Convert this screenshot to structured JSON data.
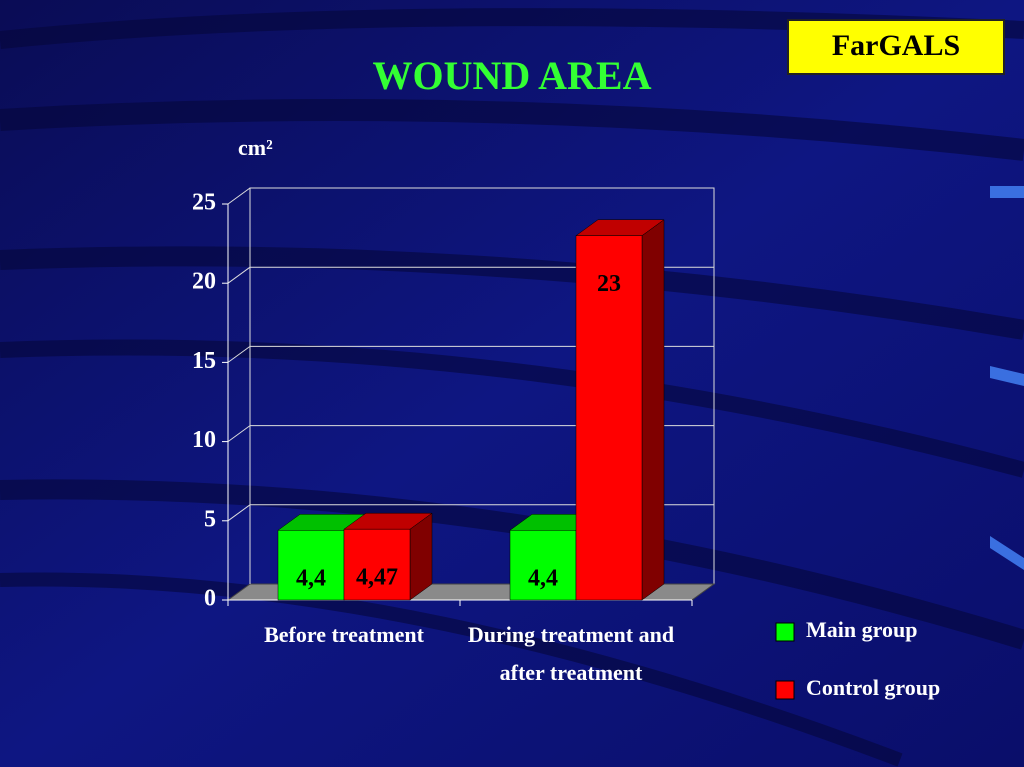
{
  "chart_data": {
    "type": "bar3d",
    "title": "WOUND AREA",
    "badge": "FarGALS",
    "y_label": "cm²",
    "categories": [
      "Before treatment",
      "During treatment and after treatment"
    ],
    "series": [
      {
        "name": "Main group",
        "color": "#00ff00",
        "values": [
          4.4,
          4.4
        ],
        "value_labels": [
          "4,4",
          "4,4"
        ]
      },
      {
        "name": "Control group",
        "color": "#ff0000",
        "values": [
          4.47,
          23
        ],
        "value_labels": [
          "4,47",
          "23"
        ]
      }
    ],
    "ylim": [
      0,
      25
    ],
    "yticks": [
      0,
      5,
      10,
      15,
      20,
      25
    ],
    "grid": true
  }
}
